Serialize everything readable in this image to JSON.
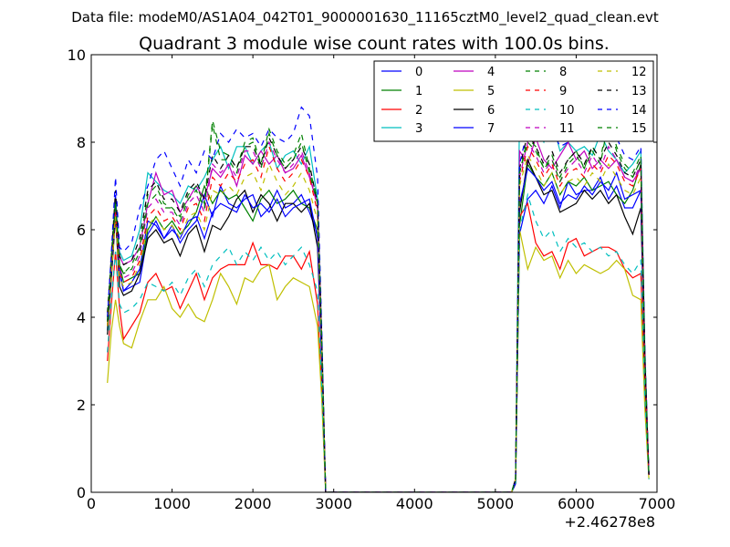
{
  "figure": {
    "suptitle": "Data file: modeM0/AS1A04_042T01_9000001630_11165cztM0_level2_quad_clean.evt",
    "offset_text": "+2.46278e8"
  },
  "chart_data": {
    "type": "line",
    "title": "Quadrant 3 module wise count rates with 100.0s bins.",
    "xlabel": "",
    "ylabel": "",
    "xlim": [
      0,
      7000
    ],
    "ylim": [
      0,
      10
    ],
    "x_offset": 246278000,
    "x_ticks": [
      0,
      1000,
      2000,
      3000,
      4000,
      5000,
      6000,
      7000
    ],
    "x_tick_labels": [
      "0",
      "1000",
      "2000",
      "3000",
      "4000",
      "5000",
      "6000",
      "7000"
    ],
    "y_ticks": [
      0,
      2,
      4,
      6,
      8,
      10
    ],
    "y_tick_labels": [
      "0",
      "2",
      "4",
      "6",
      "8",
      "10"
    ],
    "grid": false,
    "legend_position": "top-right",
    "legend_columns": 4,
    "x": [
      200,
      250,
      300,
      350,
      400,
      500,
      600,
      700,
      800,
      900,
      1000,
      1100,
      1200,
      1300,
      1400,
      1500,
      1600,
      1700,
      1800,
      1900,
      2000,
      2100,
      2200,
      2300,
      2400,
      2500,
      2600,
      2700,
      2800,
      2850,
      2900,
      3000,
      5200,
      5250,
      5300,
      5400,
      5500,
      5600,
      5700,
      5800,
      5900,
      6000,
      6100,
      6200,
      6300,
      6400,
      6500,
      6600,
      6700,
      6800,
      6850,
      6900
    ],
    "series": [
      {
        "name": "0",
        "color": "#0000ff",
        "dash": "solid",
        "values": [
          3.7,
          5.0,
          6.8,
          5.1,
          4.6,
          4.7,
          4.8,
          5.9,
          6.2,
          5.8,
          6.1,
          5.7,
          6.0,
          6.2,
          6.8,
          6.3,
          7.0,
          6.6,
          6.5,
          6.7,
          6.8,
          6.3,
          6.5,
          6.9,
          6.5,
          6.6,
          6.8,
          6.4,
          5.9,
          3.2,
          0.0,
          0.0,
          0.0,
          0.2,
          5.9,
          6.7,
          6.9,
          6.6,
          7.0,
          6.5,
          7.1,
          6.8,
          6.9,
          6.9,
          7.2,
          6.7,
          7.0,
          6.5,
          6.5,
          6.9,
          2.8,
          0.4
        ]
      },
      {
        "name": "1",
        "color": "#008000",
        "dash": "solid",
        "values": [
          3.9,
          5.2,
          6.5,
          5.2,
          4.8,
          4.9,
          5.0,
          6.0,
          6.3,
          6.0,
          6.2,
          5.9,
          6.1,
          6.4,
          7.0,
          6.6,
          6.9,
          6.7,
          6.8,
          6.5,
          6.2,
          6.7,
          6.9,
          6.6,
          6.7,
          6.9,
          6.6,
          6.5,
          6.0,
          3.3,
          0.0,
          0.0,
          0.0,
          0.2,
          6.1,
          7.5,
          7.2,
          7.0,
          7.3,
          6.8,
          7.1,
          7.0,
          7.2,
          6.9,
          7.0,
          7.1,
          6.8,
          6.6,
          6.9,
          7.5,
          3.0,
          0.4
        ]
      },
      {
        "name": "2",
        "color": "#ff0000",
        "dash": "solid",
        "values": [
          3.0,
          4.3,
          5.5,
          4.2,
          3.5,
          3.8,
          4.1,
          4.8,
          5.0,
          4.6,
          4.7,
          4.2,
          4.6,
          5.0,
          4.4,
          4.9,
          5.1,
          5.2,
          5.2,
          5.2,
          5.7,
          5.2,
          5.2,
          5.1,
          5.4,
          5.4,
          5.1,
          5.5,
          4.3,
          2.4,
          0.0,
          0.0,
          0.0,
          0.2,
          6.3,
          6.6,
          5.7,
          5.4,
          5.5,
          5.1,
          5.7,
          5.8,
          5.4,
          5.5,
          5.6,
          5.6,
          5.5,
          5.1,
          4.9,
          5.0,
          2.1,
          0.4
        ]
      },
      {
        "name": "3",
        "color": "#00bfbf",
        "dash": "solid",
        "values": [
          3.7,
          5.4,
          6.6,
          5.5,
          5.3,
          5.4,
          6.0,
          7.3,
          7.1,
          6.9,
          6.8,
          6.6,
          7.0,
          6.9,
          7.2,
          7.6,
          7.9,
          7.4,
          7.9,
          7.9,
          7.5,
          7.8,
          8.0,
          7.4,
          7.7,
          7.8,
          7.5,
          7.9,
          6.7,
          3.7,
          0.0,
          0.0,
          0.0,
          0.3,
          8.8,
          9.6,
          8.4,
          8.0,
          8.5,
          7.8,
          8.0,
          7.8,
          7.9,
          7.7,
          8.2,
          7.8,
          7.6,
          7.3,
          7.5,
          7.8,
          3.2,
          0.4
        ]
      },
      {
        "name": "4",
        "color": "#bf00bf",
        "dash": "solid",
        "values": [
          3.8,
          5.3,
          6.4,
          5.4,
          5.2,
          5.3,
          5.6,
          6.6,
          7.3,
          6.8,
          6.9,
          6.4,
          6.7,
          7.0,
          6.7,
          7.4,
          7.2,
          7.5,
          7.0,
          7.7,
          7.5,
          7.8,
          7.5,
          7.7,
          7.3,
          7.4,
          7.7,
          7.2,
          6.6,
          3.6,
          0.0,
          0.0,
          0.0,
          0.3,
          7.8,
          7.5,
          8.1,
          7.6,
          7.4,
          7.7,
          8.0,
          7.6,
          7.8,
          7.4,
          7.6,
          7.4,
          7.6,
          7.2,
          7.1,
          7.4,
          3.1,
          0.4
        ]
      },
      {
        "name": "5",
        "color": "#bfbf00",
        "dash": "solid",
        "values": [
          2.5,
          3.7,
          4.4,
          3.8,
          3.4,
          3.3,
          3.9,
          4.4,
          4.4,
          4.7,
          4.2,
          4.0,
          4.3,
          4.0,
          3.9,
          4.4,
          5.0,
          4.7,
          4.3,
          4.9,
          4.8,
          5.1,
          5.2,
          4.4,
          4.7,
          4.9,
          4.8,
          4.7,
          3.8,
          2.2,
          0.0,
          0.0,
          0.0,
          0.2,
          6.0,
          5.1,
          5.6,
          5.3,
          5.4,
          4.9,
          5.3,
          5.0,
          5.2,
          5.1,
          5.0,
          5.1,
          5.3,
          5.1,
          4.5,
          4.4,
          1.9,
          0.3
        ]
      },
      {
        "name": "6",
        "color": "#000000",
        "dash": "solid",
        "values": [
          3.6,
          4.9,
          6.3,
          4.7,
          4.5,
          4.6,
          5.0,
          5.8,
          6.0,
          5.7,
          5.8,
          5.4,
          5.9,
          6.1,
          5.5,
          6.1,
          6.0,
          6.3,
          6.7,
          6.9,
          6.4,
          6.8,
          6.6,
          6.2,
          6.6,
          6.6,
          6.4,
          6.6,
          5.6,
          3.1,
          0.0,
          0.0,
          0.0,
          0.2,
          6.4,
          7.6,
          7.2,
          6.8,
          6.9,
          6.4,
          6.5,
          6.6,
          6.9,
          6.7,
          6.9,
          6.6,
          6.8,
          6.3,
          5.9,
          6.5,
          2.7,
          0.4
        ]
      },
      {
        "name": "7",
        "color": "#0000ff",
        "dash": "solid",
        "values": [
          3.9,
          5.1,
          6.6,
          5.0,
          4.6,
          4.8,
          5.1,
          6.2,
          6.1,
          5.8,
          6.0,
          5.8,
          6.2,
          6.3,
          5.8,
          6.4,
          6.6,
          6.5,
          6.4,
          6.8,
          6.5,
          6.6,
          6.4,
          6.7,
          6.3,
          6.5,
          6.6,
          6.7,
          5.8,
          3.2,
          0.0,
          0.0,
          0.0,
          0.2,
          6.6,
          7.4,
          7.2,
          6.9,
          7.1,
          6.6,
          6.8,
          6.7,
          7.0,
          6.8,
          7.1,
          6.9,
          7.3,
          6.7,
          6.8,
          6.9,
          2.9,
          0.4
        ]
      },
      {
        "name": "8",
        "color": "#008000",
        "dash": "dashed",
        "values": [
          4.0,
          5.4,
          6.7,
          5.2,
          5.0,
          5.2,
          5.6,
          6.8,
          7.0,
          6.6,
          6.5,
          6.3,
          6.8,
          7.0,
          6.6,
          8.5,
          7.8,
          7.7,
          7.4,
          8.0,
          8.1,
          7.5,
          8.3,
          7.8,
          7.5,
          7.7,
          8.2,
          7.4,
          6.7,
          3.7,
          0.0,
          0.0,
          0.0,
          0.3,
          7.3,
          8.1,
          7.9,
          7.4,
          7.7,
          7.2,
          7.6,
          7.8,
          7.4,
          7.9,
          7.6,
          8.6,
          7.9,
          7.5,
          7.3,
          7.7,
          3.2,
          0.4
        ]
      },
      {
        "name": "9",
        "color": "#ff0000",
        "dash": "dashed",
        "values": [
          3.8,
          5.1,
          6.4,
          5.0,
          4.8,
          4.9,
          5.3,
          6.3,
          6.5,
          6.2,
          6.3,
          6.0,
          6.5,
          6.6,
          6.2,
          7.2,
          7.0,
          7.3,
          7.1,
          7.5,
          7.6,
          7.2,
          7.9,
          7.4,
          7.1,
          7.3,
          7.6,
          7.2,
          6.4,
          3.5,
          0.0,
          0.0,
          0.0,
          0.3,
          7.1,
          7.9,
          7.6,
          7.2,
          7.5,
          7.0,
          7.3,
          7.4,
          7.2,
          7.5,
          7.3,
          7.7,
          7.5,
          7.1,
          7.0,
          7.4,
          3.0,
          0.4
        ]
      },
      {
        "name": "10",
        "color": "#00bfbf",
        "dash": "dashed",
        "values": [
          3.2,
          4.4,
          5.5,
          4.3,
          4.1,
          4.2,
          4.4,
          4.8,
          4.7,
          4.6,
          4.8,
          4.5,
          4.9,
          5.1,
          4.7,
          5.2,
          5.4,
          5.6,
          5.2,
          5.5,
          5.3,
          5.6,
          5.3,
          5.5,
          5.2,
          5.4,
          5.6,
          5.2,
          4.6,
          2.5,
          0.0,
          0.0,
          0.0,
          0.2,
          6.0,
          6.8,
          6.2,
          5.8,
          6.0,
          5.5,
          5.8,
          5.6,
          5.7,
          5.5,
          5.6,
          5.4,
          5.5,
          5.2,
          5.0,
          5.3,
          2.2,
          0.3
        ]
      },
      {
        "name": "11",
        "color": "#bf00bf",
        "dash": "dashed",
        "values": [
          3.9,
          5.2,
          6.5,
          5.1,
          4.9,
          5.0,
          5.4,
          6.5,
          6.7,
          6.4,
          6.4,
          6.1,
          6.6,
          6.8,
          6.4,
          7.5,
          7.3,
          7.5,
          7.2,
          7.8,
          7.8,
          7.4,
          8.0,
          7.6,
          7.3,
          7.5,
          7.8,
          7.3,
          6.5,
          3.6,
          0.0,
          0.0,
          0.0,
          0.3,
          7.2,
          8.0,
          7.7,
          7.3,
          7.6,
          7.1,
          7.4,
          7.6,
          7.3,
          7.7,
          7.4,
          7.9,
          7.6,
          7.2,
          7.1,
          7.5,
          3.1,
          0.4
        ]
      },
      {
        "name": "12",
        "color": "#bfbf00",
        "dash": "dashed",
        "values": [
          3.8,
          5.0,
          6.3,
          4.9,
          4.7,
          4.8,
          5.2,
          6.1,
          6.3,
          6.0,
          6.1,
          5.8,
          6.3,
          6.4,
          6.0,
          6.9,
          6.8,
          7.0,
          6.8,
          7.2,
          7.3,
          6.9,
          7.5,
          7.1,
          6.8,
          7.0,
          7.3,
          6.9,
          6.2,
          3.4,
          0.0,
          0.0,
          0.0,
          0.3,
          7.0,
          7.7,
          7.4,
          7.0,
          7.3,
          6.8,
          7.1,
          7.2,
          7.0,
          7.3,
          7.1,
          7.5,
          7.2,
          6.9,
          6.8,
          7.2,
          2.9,
          0.4
        ]
      },
      {
        "name": "13",
        "color": "#000000",
        "dash": "dashed",
        "values": [
          4.1,
          5.4,
          6.9,
          5.4,
          5.2,
          5.3,
          5.8,
          6.9,
          7.1,
          6.7,
          6.7,
          6.4,
          6.9,
          7.1,
          6.7,
          7.7,
          7.4,
          7.7,
          7.4,
          7.9,
          7.9,
          7.5,
          8.1,
          7.7,
          7.4,
          7.6,
          7.9,
          7.5,
          6.6,
          3.7,
          0.0,
          0.0,
          0.0,
          0.3,
          7.4,
          8.2,
          7.9,
          7.5,
          7.8,
          7.3,
          7.6,
          7.8,
          7.5,
          7.9,
          7.6,
          8.0,
          7.7,
          7.3,
          7.2,
          7.6,
          3.1,
          0.4
        ]
      },
      {
        "name": "14",
        "color": "#0000ff",
        "dash": "dashed",
        "values": [
          4.0,
          5.5,
          7.2,
          5.6,
          5.5,
          5.7,
          6.5,
          7.0,
          7.6,
          7.8,
          7.4,
          7.0,
          7.6,
          7.3,
          7.8,
          7.6,
          8.2,
          8.0,
          8.3,
          8.1,
          8.2,
          7.9,
          8.3,
          8.1,
          8.0,
          8.2,
          8.8,
          8.6,
          7.2,
          3.9,
          0.0,
          0.0,
          0.0,
          0.3,
          7.5,
          8.3,
          8.5,
          8.1,
          8.3,
          7.9,
          8.0,
          8.4,
          8.1,
          8.4,
          8.0,
          8.2,
          8.1,
          7.7,
          7.6,
          7.9,
          3.3,
          0.4
        ]
      },
      {
        "name": "15",
        "color": "#008000",
        "dash": "dashed",
        "values": [
          3.9,
          5.3,
          6.6,
          5.2,
          5.0,
          5.1,
          5.5,
          6.6,
          6.8,
          6.5,
          6.5,
          6.2,
          6.7,
          6.9,
          6.5,
          8.4,
          7.6,
          7.6,
          7.3,
          7.9,
          8.0,
          7.4,
          8.2,
          7.7,
          7.4,
          7.6,
          8.0,
          7.3,
          6.6,
          3.6,
          0.0,
          0.0,
          0.0,
          0.3,
          7.3,
          8.0,
          7.8,
          7.4,
          7.6,
          7.1,
          7.5,
          7.7,
          7.4,
          7.8,
          7.5,
          8.5,
          7.8,
          7.4,
          7.2,
          7.6,
          3.1,
          0.4
        ]
      }
    ]
  }
}
